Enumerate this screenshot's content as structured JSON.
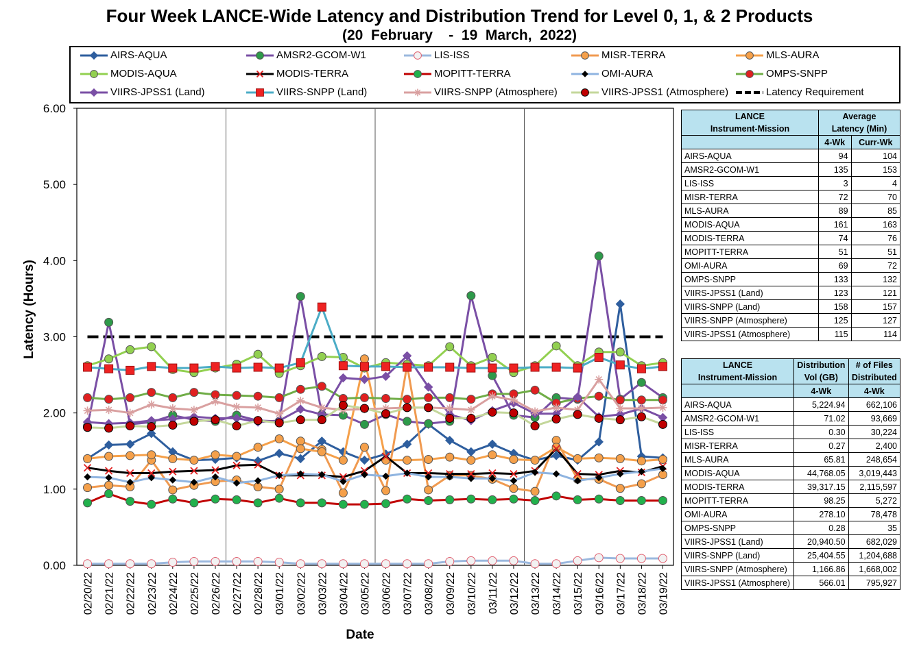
{
  "title": "Four Week LANCE-Wide Latency and Distribution Trend for Level 0, 1, & 2 Products",
  "subtitle": "(20  February    -  19  March,  2022)",
  "colors": {
    "AIRS-AQUA": "#2e5e9e",
    "AMSR2-GCOM-W1": "#7a4fa5",
    "LIS-ISS": "#9bb8de",
    "MISR-TERRA": "#f09a50",
    "MLS-AURA": "#f5a04a",
    "MODIS-AQUA": "#92d050",
    "MODIS-TERRA": "#000000",
    "MOPITT-TERRA": "#c00000",
    "OMI-AURA": "#8fb4e0",
    "OMPS-SNPP": "#70ad47",
    "VIIRS-JPSS1 (Land)": "#7a4fa5",
    "VIIRS-SNPP (Land)": "#4bacc6",
    "VIIRS-SNPP (Atmosphere)": "#d9a0a0",
    "VIIRS-JPSS1 (Atmosphere)": "#c4d79b",
    "Latency Requirement": "#000000"
  },
  "legend": [
    {
      "name": "AIRS-AQUA",
      "marker": "diamond",
      "fill": "#2e5e9e",
      "line": "#2e5e9e"
    },
    {
      "name": "AMSR2-GCOM-W1",
      "marker": "circle",
      "fill": "#2e9a4a",
      "line": "#7a4fa5"
    },
    {
      "name": "LIS-ISS",
      "marker": "circle",
      "fill": "#f2f2f2",
      "stroke": "#e06070",
      "line": "#9bb8de"
    },
    {
      "name": "MISR-TERRA",
      "marker": "circle",
      "fill": "#f5a04a",
      "line": "#f09a50"
    },
    {
      "name": "MLS-AURA",
      "marker": "circle",
      "fill": "#f5a04a",
      "line": "#f5a04a"
    },
    {
      "name": "MODIS-AQUA",
      "marker": "circle",
      "fill": "#92d050",
      "line": "#92d050"
    },
    {
      "name": "MODIS-TERRA",
      "marker": "x",
      "fill": "#e02020",
      "line": "#000000"
    },
    {
      "name": "MOPITT-TERRA",
      "marker": "circle",
      "fill": "#22b14c",
      "line": "#c00000"
    },
    {
      "name": "OMI-AURA",
      "marker": "diamond-small",
      "fill": "#000000",
      "line": "#8fb4e0"
    },
    {
      "name": "OMPS-SNPP",
      "marker": "circle",
      "fill": "#e02020",
      "line": "#70ad47"
    },
    {
      "name": "VIIRS-JPSS1 (Land)",
      "marker": "diamond",
      "fill": "#7a4fa5",
      "line": "#7a4fa5"
    },
    {
      "name": "VIIRS-SNPP (Land)",
      "marker": "square",
      "fill": "#ee2222",
      "line": "#4bacc6"
    },
    {
      "name": "VIIRS-SNPP (Atmosphere)",
      "marker": "star",
      "fill": "#d9a0a0",
      "line": "#d9a0a0"
    },
    {
      "name": "VIIRS-JPSS1 (Atmosphere)",
      "marker": "circle",
      "fill": "#c00000",
      "stroke": "#000000",
      "line": "#c4d79b"
    },
    {
      "name": "Latency Requirement",
      "marker": "none",
      "fill": "#000000",
      "line": "#000000",
      "dash": true
    }
  ],
  "chart_data": {
    "type": "line",
    "title": "Four Week LANCE-Wide Latency and Distribution Trend for Level 0, 1, & 2 Products",
    "xlabel": "Date",
    "ylabel": "Latency (Hours)",
    "ylim": [
      0,
      6
    ],
    "yticks": [
      "0.00",
      "1.00",
      "2.00",
      "3.00",
      "4.00",
      "5.00",
      "6.00"
    ],
    "grid": "vertical every 7 days",
    "legend_position": "top",
    "x": [
      "02/20/22",
      "02/21/22",
      "02/22/22",
      "02/23/22",
      "02/24/22",
      "02/25/22",
      "02/26/22",
      "02/27/22",
      "02/28/22",
      "03/01/22",
      "03/02/22",
      "03/03/22",
      "03/04/22",
      "03/05/22",
      "03/06/22",
      "03/07/22",
      "03/08/22",
      "03/09/22",
      "03/10/22",
      "03/11/22",
      "03/12/22",
      "03/13/22",
      "03/14/22",
      "03/15/22",
      "03/16/22",
      "03/17/22",
      "03/18/22",
      "03/19/22"
    ],
    "series": [
      {
        "name": "AIRS-AQUA",
        "values": [
          1.4,
          1.58,
          1.59,
          1.73,
          1.49,
          1.38,
          1.39,
          1.41,
          1.37,
          1.47,
          1.4,
          1.63,
          1.49,
          1.38,
          1.46,
          1.59,
          1.85,
          1.64,
          1.49,
          1.59,
          1.47,
          1.38,
          1.44,
          1.38,
          1.62,
          3.43,
          1.43,
          1.41
        ]
      },
      {
        "name": "AMSR2-GCOM-W1",
        "values": [
          1.83,
          3.19,
          1.85,
          1.88,
          1.97,
          1.91,
          1.89,
          1.97,
          1.9,
          1.89,
          3.53,
          1.98,
          1.97,
          1.85,
          1.98,
          1.89,
          1.86,
          1.89,
          3.54,
          2.49,
          1.97,
          1.94,
          2.2,
          2.18,
          4.06,
          2.18,
          2.4,
          2.2
        ]
      },
      {
        "name": "LIS-ISS",
        "values": [
          0.02,
          0.02,
          0.02,
          0.02,
          0.04,
          0.05,
          0.05,
          0.05,
          0.05,
          0.04,
          0.02,
          0.02,
          0.02,
          0.02,
          0.02,
          0.02,
          0.02,
          0.05,
          0.06,
          0.06,
          0.06,
          0.02,
          0.02,
          0.06,
          0.1,
          0.09,
          0.09,
          0.09
        ]
      },
      {
        "name": "MISR-TERRA",
        "values": [
          1.02,
          1.05,
          1.03,
          1.38,
          0.99,
          1.05,
          1.1,
          1.12,
          1.03,
          1.0,
          1.63,
          1.52,
          0.95,
          1.55,
          0.98,
          2.63,
          0.99,
          1.18,
          1.18,
          1.13,
          1.01,
          0.97,
          1.64,
          1.13,
          1.13,
          1.01,
          1.07,
          1.19
        ]
      },
      {
        "name": "MLS-AURA",
        "values": [
          1.4,
          1.43,
          1.44,
          1.45,
          1.4,
          1.38,
          1.45,
          1.43,
          1.55,
          1.66,
          1.53,
          1.49,
          1.38,
          2.71,
          1.38,
          1.38,
          1.39,
          1.42,
          1.38,
          1.45,
          1.39,
          1.38,
          1.55,
          1.4,
          1.41,
          1.4,
          1.37,
          1.39
        ]
      },
      {
        "name": "MODIS-AQUA",
        "values": [
          2.62,
          2.71,
          2.83,
          2.87,
          2.57,
          2.53,
          2.59,
          2.64,
          2.77,
          2.52,
          2.62,
          2.74,
          2.73,
          2.59,
          2.66,
          2.64,
          2.62,
          2.87,
          2.62,
          2.73,
          2.53,
          2.62,
          2.88,
          2.62,
          2.8,
          2.8,
          2.62,
          2.66
        ]
      },
      {
        "name": "MODIS-TERRA",
        "values": [
          1.28,
          1.24,
          1.21,
          1.21,
          1.23,
          1.24,
          1.25,
          1.31,
          1.32,
          1.18,
          1.18,
          1.18,
          1.16,
          1.24,
          1.43,
          1.21,
          1.21,
          1.2,
          1.2,
          1.21,
          1.2,
          1.24,
          1.53,
          1.2,
          1.19,
          1.24,
          1.22,
          1.3
        ]
      },
      {
        "name": "MOPITT-TERRA",
        "values": [
          0.82,
          0.94,
          0.84,
          0.8,
          0.87,
          0.82,
          0.87,
          0.86,
          0.82,
          0.88,
          0.82,
          0.82,
          0.8,
          0.8,
          0.81,
          0.87,
          0.85,
          0.86,
          0.87,
          0.86,
          0.87,
          0.85,
          0.91,
          0.86,
          0.87,
          0.85,
          0.85,
          0.85
        ]
      },
      {
        "name": "OMI-AURA",
        "values": [
          1.16,
          1.15,
          1.09,
          1.15,
          1.12,
          1.09,
          1.16,
          1.08,
          1.11,
          1.18,
          1.2,
          1.19,
          1.1,
          1.19,
          1.17,
          1.21,
          1.16,
          1.16,
          1.14,
          1.14,
          1.11,
          1.22,
          1.2,
          1.11,
          1.15,
          1.2,
          1.23,
          1.27
        ]
      },
      {
        "name": "OMPS-SNPP",
        "values": [
          2.2,
          2.18,
          2.2,
          2.27,
          2.2,
          2.27,
          2.24,
          2.23,
          2.22,
          2.2,
          2.31,
          2.35,
          2.19,
          2.2,
          2.19,
          2.18,
          2.2,
          2.2,
          2.18,
          2.25,
          2.25,
          2.3,
          2.13,
          2.19,
          2.22,
          2.17,
          2.17,
          2.17
        ]
      },
      {
        "name": "VIIRS-JPSS1 (Land)",
        "values": [
          1.88,
          1.86,
          1.87,
          1.9,
          1.92,
          1.95,
          1.93,
          1.93,
          1.88,
          1.9,
          2.05,
          1.98,
          2.46,
          2.44,
          2.48,
          2.75,
          2.34,
          1.98,
          1.9,
          2.03,
          2.13,
          1.99,
          1.99,
          2.21,
          1.95,
          1.98,
          2.06,
          1.94
        ]
      },
      {
        "name": "VIIRS-SNPP (Land)",
        "values": [
          2.6,
          2.58,
          2.56,
          2.61,
          2.59,
          2.59,
          2.61,
          2.59,
          2.6,
          2.59,
          2.66,
          3.39,
          2.62,
          2.61,
          2.61,
          2.6,
          2.6,
          2.6,
          2.59,
          2.59,
          2.59,
          2.6,
          2.6,
          2.59,
          2.73,
          2.63,
          2.58,
          2.61
        ]
      },
      {
        "name": "VIIRS-SNPP (Atmosphere)",
        "values": [
          2.03,
          2.04,
          2.0,
          2.11,
          2.06,
          2.04,
          2.15,
          2.08,
          2.07,
          1.99,
          2.16,
          2.07,
          2.04,
          2.05,
          2.06,
          2.07,
          2.07,
          2.06,
          2.04,
          2.22,
          2.17,
          2.02,
          2.07,
          2.04,
          2.44,
          2.06,
          2.06,
          2.07
        ]
      },
      {
        "name": "VIIRS-JPSS1 (Atmosphere)",
        "values": [
          1.81,
          1.8,
          1.83,
          1.82,
          1.84,
          1.89,
          1.91,
          1.83,
          1.9,
          1.87,
          1.91,
          1.91,
          2.1,
          2.06,
          1.99,
          2.07,
          2.07,
          1.93,
          1.93,
          2.01,
          2.0,
          1.83,
          1.92,
          1.98,
          1.93,
          1.91,
          1.95,
          1.85
        ]
      },
      {
        "name": "Latency Requirement",
        "values": [
          3,
          3,
          3,
          3,
          3,
          3,
          3,
          3,
          3,
          3,
          3,
          3,
          3,
          3,
          3,
          3,
          3,
          3,
          3,
          3,
          3,
          3,
          3,
          3,
          3,
          3,
          3,
          3
        ]
      }
    ]
  },
  "latency_table": {
    "header_left": [
      "LANCE",
      "Instrument-Mission"
    ],
    "header_right": [
      "Average",
      "Latency (Min)"
    ],
    "sub_headers": [
      "4-Wk",
      "Curr-Wk"
    ],
    "rows": [
      {
        "name": "AIRS-AQUA",
        "four_wk": "94",
        "curr_wk": "104"
      },
      {
        "name": "AMSR2-GCOM-W1",
        "four_wk": "135",
        "curr_wk": "153"
      },
      {
        "name": "LIS-ISS",
        "four_wk": "3",
        "curr_wk": "4"
      },
      {
        "name": "MISR-TERRA",
        "four_wk": "72",
        "curr_wk": "70"
      },
      {
        "name": "MLS-AURA",
        "four_wk": "89",
        "curr_wk": "85"
      },
      {
        "name": "MODIS-AQUA",
        "four_wk": "161",
        "curr_wk": "163"
      },
      {
        "name": "MODIS-TERRA",
        "four_wk": "74",
        "curr_wk": "76"
      },
      {
        "name": "MOPITT-TERRA",
        "four_wk": "51",
        "curr_wk": "51"
      },
      {
        "name": "OMI-AURA",
        "four_wk": "69",
        "curr_wk": "72"
      },
      {
        "name": "OMPS-SNPP",
        "four_wk": "133",
        "curr_wk": "132"
      },
      {
        "name": "VIIRS-JPSS1 (Land)",
        "four_wk": "123",
        "curr_wk": "121"
      },
      {
        "name": "VIIRS-SNPP (Land)",
        "four_wk": "158",
        "curr_wk": "157"
      },
      {
        "name": "VIIRS-SNPP (Atmosphere)",
        "four_wk": "125",
        "curr_wk": "127"
      },
      {
        "name": "VIIRS-JPSS1 (Atmosphere)",
        "four_wk": "115",
        "curr_wk": "114"
      }
    ]
  },
  "distribution_table": {
    "header_left": [
      "LANCE",
      "Instrument-Mission"
    ],
    "header_mid": [
      "Distribution",
      "Vol (GB)"
    ],
    "header_right": [
      "# of Files",
      "Distributed"
    ],
    "sub_headers": [
      "4-Wk",
      "4-Wk"
    ],
    "rows": [
      {
        "name": "AIRS-AQUA",
        "vol": "5,224.94",
        "files": "662,106"
      },
      {
        "name": "AMSR2-GCOM-W1",
        "vol": "71.02",
        "files": "93,669"
      },
      {
        "name": "LIS-ISS",
        "vol": "0.30",
        "files": "30,224"
      },
      {
        "name": "MISR-TERRA",
        "vol": "0.27",
        "files": "2,400"
      },
      {
        "name": "MLS-AURA",
        "vol": "65.81",
        "files": "248,654"
      },
      {
        "name": "MODIS-AQUA",
        "vol": "44,768.05",
        "files": "3,019,443"
      },
      {
        "name": "MODIS-TERRA",
        "vol": "39,317.15",
        "files": "2,115,597"
      },
      {
        "name": "MOPITT-TERRA",
        "vol": "98.25",
        "files": "5,272"
      },
      {
        "name": "OMI-AURA",
        "vol": "278.10",
        "files": "78,478"
      },
      {
        "name": "OMPS-SNPP",
        "vol": "0.28",
        "files": "35"
      },
      {
        "name": "VIIRS-JPSS1 (Land)",
        "vol": "20,940.50",
        "files": "682,029"
      },
      {
        "name": "VIIRS-SNPP (Land)",
        "vol": "25,404.55",
        "files": "1,204,688"
      },
      {
        "name": "VIIRS-SNPP (Atmosphere)",
        "vol": "1,166.86",
        "files": "1,668,002"
      },
      {
        "name": "VIIRS-JPSS1 (Atmosphere)",
        "vol": "566.01",
        "files": "795,927"
      }
    ]
  }
}
